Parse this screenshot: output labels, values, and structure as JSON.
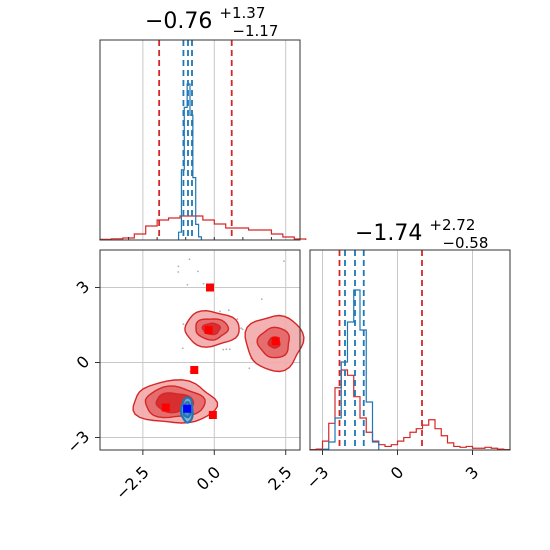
{
  "chart_data": [
    {
      "type": "area",
      "panel": "1D marginal, parameter 1",
      "title": {
        "median": "−0.76",
        "plus": "+1.37",
        "minus": "−1.17"
      },
      "xlim": [
        -4,
        3
      ],
      "grid": true,
      "series": [
        {
          "name": "",
          "color": "#d62728",
          "kind": "step-histogram",
          "x": [
            -4.0,
            -3.6,
            -3.2,
            -2.8,
            -2.4,
            -2.0,
            -1.6,
            -1.2,
            -0.8,
            -0.4,
            0.0,
            0.4,
            0.8,
            1.2,
            1.6,
            2.0,
            2.4,
            2.8
          ],
          "values": [
            0.003,
            0.006,
            0.01,
            0.03,
            0.07,
            0.1,
            0.11,
            0.12,
            0.12,
            0.1,
            0.08,
            0.06,
            0.06,
            0.05,
            0.05,
            0.03,
            0.015,
            0.005
          ],
          "quantiles": [
            -1.93,
            0.61
          ]
        },
        {
          "name": "",
          "color": "#1f77b4",
          "kind": "step-histogram",
          "x": [
            -1.25,
            -1.15,
            -1.05,
            -0.95,
            -0.85,
            -0.75,
            -0.65,
            -0.55
          ],
          "values": [
            0.05,
            0.45,
            0.85,
            1.0,
            0.8,
            0.4,
            0.1,
            0.02
          ],
          "quantiles": [
            -1.08,
            -0.92,
            -0.78
          ]
        }
      ],
      "xticks": [
        -2.5,
        0.0,
        2.5
      ]
    },
    {
      "type": "scatter",
      "panel": "2D joint, parameter 1 vs parameter 2",
      "xlim": [
        -4,
        3
      ],
      "ylim": [
        -3.5,
        4.5
      ],
      "grid": true,
      "xticks": [
        "−2.5",
        "0.0",
        "2.5"
      ],
      "yticks": [
        "−3",
        "0",
        "3"
      ],
      "x_tick_values": [
        -2.5,
        0.0,
        2.5
      ],
      "y_tick_values": [
        -3,
        0,
        3
      ],
      "contours": [
        {
          "name": "",
          "color": "#d62728",
          "center": [
            -1.4,
            -1.6
          ],
          "radii": [
            1.45,
            0.85
          ],
          "levels": [
            1.0,
            0.72,
            0.45
          ]
        },
        {
          "name": "",
          "color": "#d62728",
          "center": [
            -0.1,
            1.35
          ],
          "radii": [
            0.95,
            0.7
          ],
          "levels": [
            1.0,
            0.6,
            0.32
          ]
        },
        {
          "name": "",
          "color": "#d62728",
          "center": [
            2.1,
            0.8
          ],
          "radii": [
            1.0,
            1.1
          ],
          "levels": [
            1.0,
            0.55,
            0.2
          ]
        },
        {
          "name": "",
          "color": "#1f77b4",
          "center": [
            -0.95,
            -1.9
          ],
          "radii": [
            0.2,
            0.5
          ],
          "levels": [
            1.0,
            0.6
          ]
        }
      ],
      "markers": [
        {
          "color": "#ff0000",
          "x": -0.15,
          "y": 3.0
        },
        {
          "color": "#ff0000",
          "x": -0.2,
          "y": 1.3
        },
        {
          "color": "#ff0000",
          "x": 2.15,
          "y": 0.85
        },
        {
          "color": "#ff0000",
          "x": -0.7,
          "y": -0.3
        },
        {
          "color": "#ff0000",
          "x": -1.7,
          "y": -1.8
        },
        {
          "color": "#ff0000",
          "x": -0.05,
          "y": -2.1
        },
        {
          "color": "#0000ff",
          "x": -0.95,
          "y": -1.85
        }
      ],
      "scatter_points": {
        "color": "#b0b0b0",
        "count": 26
      }
    },
    {
      "type": "area",
      "panel": "1D marginal, parameter 2",
      "title": {
        "median": "−1.74",
        "plus": "+2.72",
        "minus": "−0.58"
      },
      "xlim": [
        -3.5,
        4.5
      ],
      "grid": true,
      "xticks": [
        "−3",
        "0",
        "3"
      ],
      "x_tick_values": [
        -3,
        0,
        3
      ],
      "series": [
        {
          "name": "",
          "color": "#d62728",
          "kind": "step-histogram",
          "x": [
            -3.5,
            -3.25,
            -3.0,
            -2.75,
            -2.5,
            -2.25,
            -2.0,
            -1.75,
            -1.5,
            -1.25,
            -1.0,
            -0.75,
            -0.5,
            -0.25,
            0.0,
            0.25,
            0.5,
            0.75,
            1.0,
            1.25,
            1.5,
            1.75,
            2.0,
            2.25,
            2.5,
            2.75,
            3.0,
            3.25,
            3.5,
            3.75,
            4.0,
            4.25
          ],
          "values": [
            0.002,
            0.005,
            0.05,
            0.15,
            0.35,
            0.45,
            0.42,
            0.3,
            0.18,
            0.1,
            0.05,
            0.03,
            0.02,
            0.03,
            0.05,
            0.07,
            0.1,
            0.12,
            0.14,
            0.17,
            0.12,
            0.08,
            0.04,
            0.02,
            0.015,
            0.02,
            0.01,
            0.01,
            0.015,
            0.01,
            0.005,
            0.002
          ],
          "quantiles": [
            -2.32,
            0.98
          ]
        },
        {
          "name": "",
          "color": "#1f77b4",
          "kind": "step-histogram",
          "x": [
            -3.0,
            -2.75,
            -2.5,
            -2.25,
            -2.0,
            -1.75,
            -1.5,
            -1.25,
            -1.0
          ],
          "values": [
            0.005,
            0.05,
            0.2,
            0.55,
            0.8,
            1.0,
            0.75,
            0.3,
            0.05
          ],
          "quantiles": [
            -2.1,
            -1.7,
            -1.35
          ]
        }
      ]
    }
  ],
  "colors": {
    "red": "#d62728",
    "red_fill_outer": "#f2a8a8",
    "red_fill_mid": "#e46666",
    "red_fill_inner": "#d62728",
    "blue": "#1f77b4",
    "grid": "#c8c8c8",
    "spine": "#333333"
  }
}
